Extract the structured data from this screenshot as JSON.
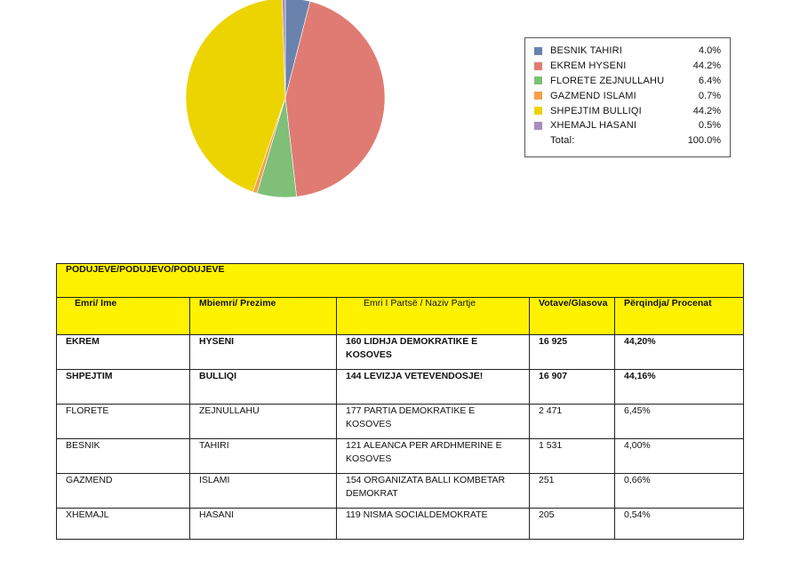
{
  "chart_data": {
    "type": "pie",
    "slices": [
      {
        "label": "BESNIK TAHIRI",
        "value": 4.0,
        "pct_label": "4.0%",
        "color": "#6a83ad"
      },
      {
        "label": "EKREM HYSENI",
        "value": 44.2,
        "pct_label": "44.2%",
        "color": "#e07b73"
      },
      {
        "label": "FLORETE ZEJNULLAHU",
        "value": 6.4,
        "pct_label": "6.4%",
        "color": "#7fbf77"
      },
      {
        "label": "GAZMEND ISLAMI",
        "value": 0.7,
        "pct_label": "0.7%",
        "color": "#f4a04a"
      },
      {
        "label": "SHPEJTIM BULLIQI",
        "value": 44.2,
        "pct_label": "44.2%",
        "color": "#ecd400"
      },
      {
        "label": "XHEMAJL HASANI",
        "value": 0.5,
        "pct_label": "0.5%",
        "color": "#a98cbf"
      }
    ],
    "legend_total_label": "Total:",
    "legend_total_value": "100.0%",
    "legend_position": "right"
  },
  "table": {
    "title": "PODUJEVE/PODUJEVO/PODUJEVE",
    "header_color": "#fff200",
    "columns": [
      "Emri/ Ime",
      "Mbiemri/ Prezime",
      "Emri I Partsë / Naziv Partje",
      "Votave/Glasova",
      "Përqindja/ Procenat"
    ],
    "rows": [
      {
        "first": "EKREM",
        "last": "HYSENI",
        "party": "160 LIDHJA DEMOKRATIKE E KOSOVES",
        "votes": "16 925",
        "pct": "44,20%",
        "bold": true
      },
      {
        "first": "SHPEJTIM",
        "last": "BULLIQI",
        "party": "144 LEVIZJA VETEVENDOSJE!",
        "votes": "16 907",
        "pct": "44,16%",
        "bold": true
      },
      {
        "first": "FLORETE",
        "last": "ZEJNULLAHU",
        "party": "177 PARTIA DEMOKRATIKE E KOSOVES",
        "votes": "2 471",
        "pct": "6,45%",
        "bold": false
      },
      {
        "first": "BESNIK",
        "last": "TAHIRI",
        "party": "121 ALEANCA PER ARDHMERINE E KOSOVES",
        "votes": "1 531",
        "pct": "4,00%",
        "bold": false
      },
      {
        "first": "GAZMEND",
        "last": "ISLAMI",
        "party": "154 ORGANIZATA BALLI KOMBETAR DEMOKRAT",
        "votes": "251",
        "pct": "0,66%",
        "bold": false
      },
      {
        "first": "XHEMAJL",
        "last": "HASANI",
        "party": "119 NISMA SOCIALDEMOKRATE",
        "votes": "205",
        "pct": "0,54%",
        "bold": false
      }
    ]
  }
}
